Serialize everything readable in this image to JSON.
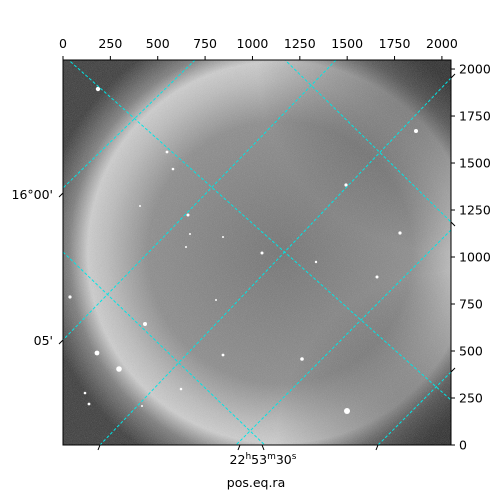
{
  "figure": {
    "xlabel": "pos.eq.ra",
    "top_ticks": [
      "0",
      "250",
      "500",
      "750",
      "1000",
      "1250",
      "1500",
      "1750",
      "2000"
    ],
    "right_ticks": [
      "0",
      "250",
      "500",
      "750",
      "1000",
      "1250",
      "1500",
      "1750",
      "2000"
    ],
    "left_ticks": [
      "16°00'",
      "05'"
    ],
    "bottom_tick": {
      "h": "22",
      "hs": "h",
      "m": "53",
      "ms": "m",
      "s": "30",
      "ss": "s"
    }
  },
  "colors": {
    "grid": "#00e5e5",
    "sky_dark": "#3a3a3a",
    "ring_light": "#b8b8b8"
  }
}
